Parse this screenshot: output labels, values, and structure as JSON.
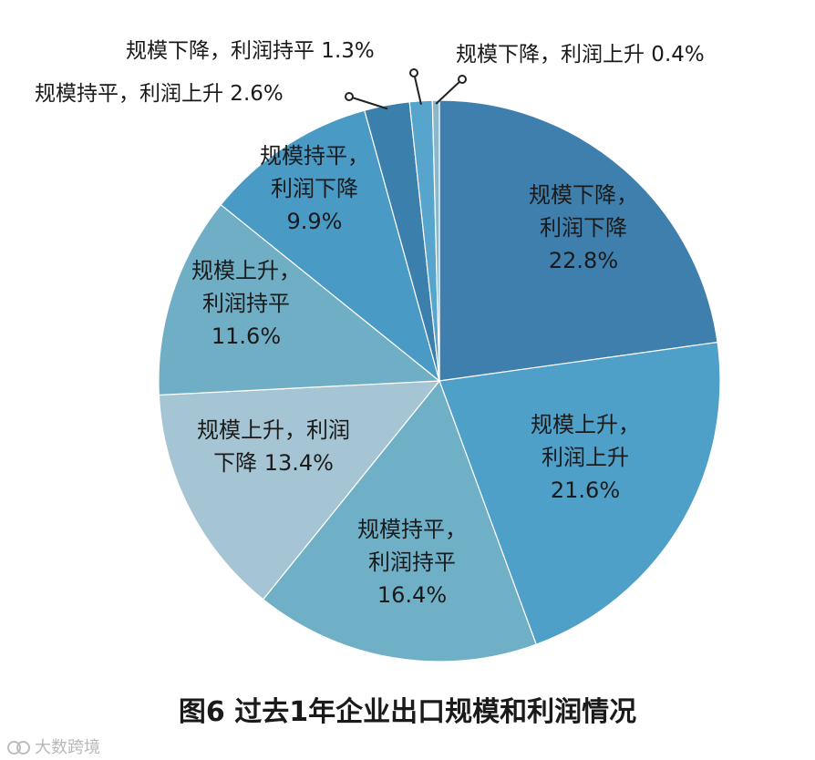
{
  "chart_data": {
    "type": "pie",
    "title": "图6  过去1年企业出口规模和利润情况",
    "slices": [
      {
        "lines": [
          "规模下降，",
          "利润下降",
          "22.8%"
        ],
        "value": 22.8,
        "color": "#3f7fad"
      },
      {
        "lines": [
          "规模上升，",
          "利润上升",
          "21.6%"
        ],
        "value": 21.6,
        "color": "#4fa0c9"
      },
      {
        "lines": [
          "规模持平，",
          "利润持平",
          "16.4%"
        ],
        "value": 16.4,
        "color": "#6fb0c7"
      },
      {
        "lines": [
          "规模上升，利润",
          "下降 13.4%"
        ],
        "value": 13.4,
        "color": "#a6c5d4"
      },
      {
        "lines": [
          "规模上升，",
          "利润持平",
          "11.6%"
        ],
        "value": 11.6,
        "color": "#6faec4"
      },
      {
        "lines": [
          "规模持平，",
          "利润下降",
          "9.9%"
        ],
        "value": 9.9,
        "color": "#4a9ac6"
      },
      {
        "lines": [
          "规模持平，利润上升 2.6%"
        ],
        "value": 2.6,
        "color": "#3b80ad"
      },
      {
        "lines": [
          "规模下降，利润持平 1.3%"
        ],
        "value": 1.3,
        "color": "#57a5cc"
      },
      {
        "lines": [
          "规模下降，利润上升 0.4%"
        ],
        "value": 0.4,
        "color": "#8bb8cc"
      }
    ]
  },
  "watermark": {
    "text": "大数跨境"
  }
}
